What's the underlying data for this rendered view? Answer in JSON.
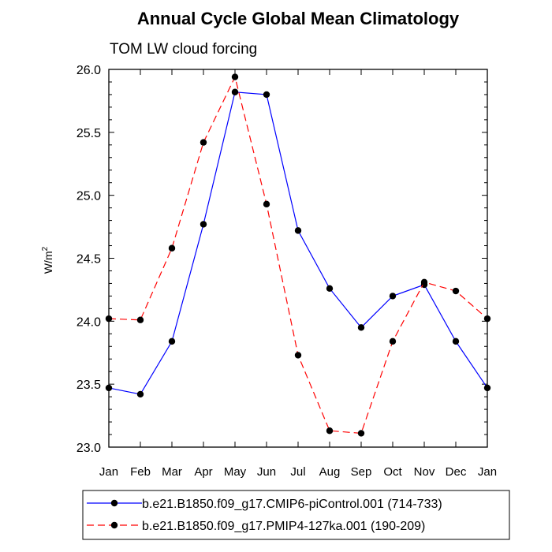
{
  "chart_data": {
    "type": "line",
    "title": "Annual Cycle Global Mean Climatology",
    "subtitle": "TOM LW cloud forcing",
    "ylabel": "W/m",
    "ylabel_sup": "2",
    "xlabel": "",
    "categories": [
      "Jan",
      "Feb",
      "Mar",
      "Apr",
      "May",
      "Jun",
      "Jul",
      "Aug",
      "Sep",
      "Oct",
      "Nov",
      "Dec",
      "Jan"
    ],
    "ylim": [
      23.0,
      26.0
    ],
    "yticks": [
      "23.0",
      "23.5",
      "24.0",
      "24.5",
      "25.0",
      "25.5",
      "26.0"
    ],
    "grid": false,
    "legend_position": "bottom",
    "series": [
      {
        "name": "b.e21.B1850.f09_g17.CMIP6-piControl.001 (714-733)",
        "color": "#0000ff",
        "line_style": "solid",
        "values": [
          23.47,
          23.42,
          23.84,
          24.77,
          25.82,
          25.8,
          24.72,
          24.26,
          23.95,
          24.2,
          24.29,
          23.84,
          23.47
        ]
      },
      {
        "name": "b.e21.B1850.f09_g17.PMIP4-127ka.001 (190-209)",
        "color": "#ff0000",
        "line_style": "dashed",
        "values": [
          24.02,
          24.01,
          24.58,
          25.42,
          25.94,
          24.93,
          23.73,
          23.13,
          23.11,
          23.84,
          24.31,
          24.24,
          24.02
        ]
      }
    ]
  }
}
